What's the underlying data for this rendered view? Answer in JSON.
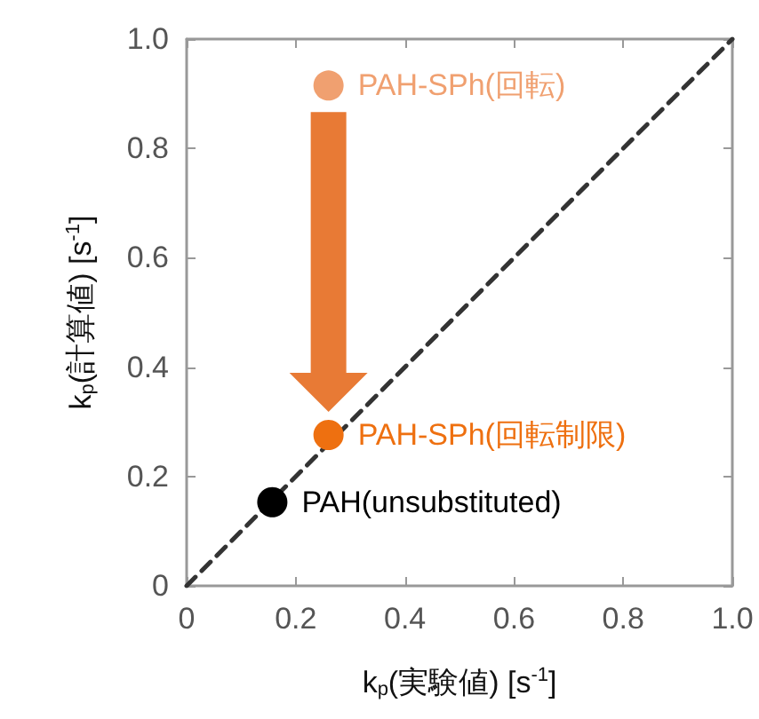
{
  "chart_data": {
    "type": "scatter",
    "xlabel": "k$_{p}$(実験値) [s$^{-1}$]",
    "ylabel": "k$_{p}$(計算値) [s$^{-1}$]",
    "xlim": [
      0,
      1
    ],
    "ylim": [
      0,
      1
    ],
    "xticks": [
      0,
      0.2,
      0.4,
      0.6,
      0.8,
      {
        "value": 1,
        "label": "1.0"
      }
    ],
    "yticks": [
      0,
      0.2,
      0.4,
      0.6,
      0.8,
      {
        "value": 1,
        "label": "1.0"
      }
    ],
    "grid": false,
    "legend": false,
    "marker": "circle",
    "series": [
      {
        "name": "PAH-SPh(回転)",
        "color": "#f0a070",
        "x": [
          0.26
        ],
        "values": [
          0.915
        ]
      },
      {
        "name": "PAH-SPh(回転制限)",
        "color": "#ee7010",
        "x": [
          0.26
        ],
        "values": [
          0.276
        ]
      },
      {
        "name": "PAH(unsubstituted)",
        "color": "#000000",
        "x": [
          0.157
        ],
        "values": [
          0.153
        ]
      },
      {
        "type": "line",
        "marker": "none",
        "line_style": "dashed",
        "color": "#333333",
        "x": [
          0,
          1
        ],
        "values": [
          0,
          1
        ]
      }
    ]
  }
}
